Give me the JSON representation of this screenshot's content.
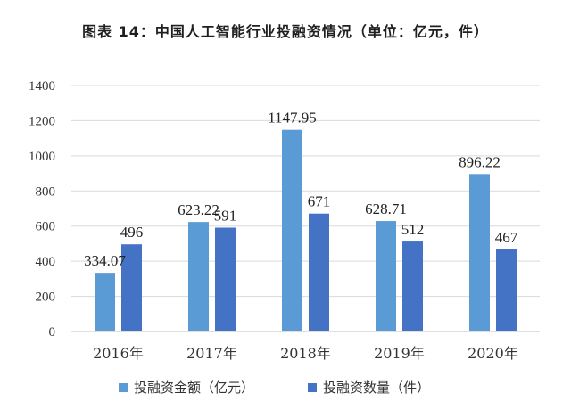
{
  "title": "图表 14：中国人工智能行业投融资情况（单位：亿元，件）",
  "chart_data": {
    "type": "bar",
    "categories": [
      "2016年",
      "2017年",
      "2018年",
      "2019年",
      "2020年"
    ],
    "series": [
      {
        "name": "投融资金额（亿元）",
        "values": [
          334.07,
          623.22,
          1147.95,
          628.71,
          896.22
        ],
        "labels": [
          "334.07",
          "623.22",
          "1147.95",
          "628.71",
          "896.22"
        ],
        "color": "#5b9bd5"
      },
      {
        "name": "投融资数量（件）",
        "values": [
          496,
          591,
          671,
          512,
          467
        ],
        "labels": [
          "496",
          "591",
          "671",
          "512",
          "467"
        ],
        "color": "#4472c4"
      }
    ],
    "yticks": [
      "0",
      "200",
      "400",
      "600",
      "800",
      "1000",
      "1200",
      "1400"
    ],
    "ylim": [
      0,
      1400
    ],
    "grid": true,
    "legend": "bottom"
  }
}
